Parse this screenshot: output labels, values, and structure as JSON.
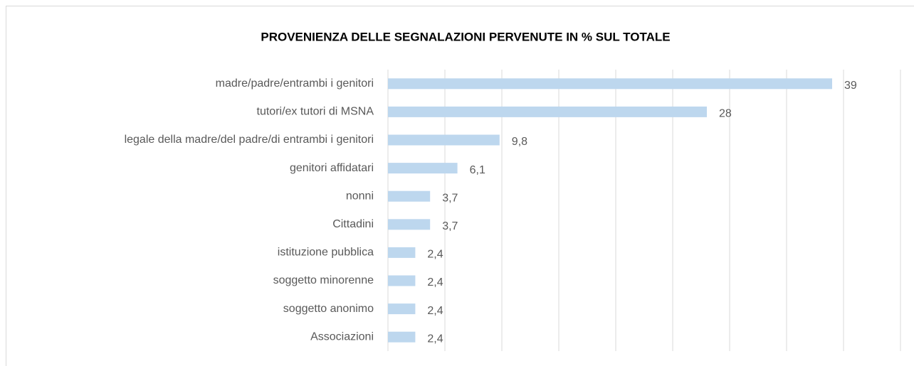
{
  "chart_data": {
    "type": "bar",
    "orientation": "horizontal",
    "title": "PROVENIENZA DELLE SEGNALAZIONI PERVENUTE IN % SUL TOTALE",
    "categories": [
      "madre/padre/entrambi i genitori",
      "tutori/ex tutori di MSNA",
      "legale della madre/del padre/di entrambi i genitori",
      "genitori affidatari",
      "nonni",
      "Cittadini",
      "istituzione pubblica",
      "soggetto minorenne",
      "soggetto anonimo",
      "Associazioni"
    ],
    "values": [
      39,
      28,
      9.8,
      6.1,
      3.7,
      3.7,
      2.4,
      2.4,
      2.4,
      2.4
    ],
    "value_labels": [
      "39",
      "28",
      "9,8",
      "6,1",
      "3,7",
      "3,7",
      "2,4",
      "2,4",
      "2,4",
      "2,4"
    ],
    "color": "#bdd7ee",
    "xlim": [
      0,
      45
    ],
    "xticks": [
      0,
      5,
      10,
      15,
      20,
      25,
      30,
      35,
      40,
      45
    ],
    "grid": true
  }
}
